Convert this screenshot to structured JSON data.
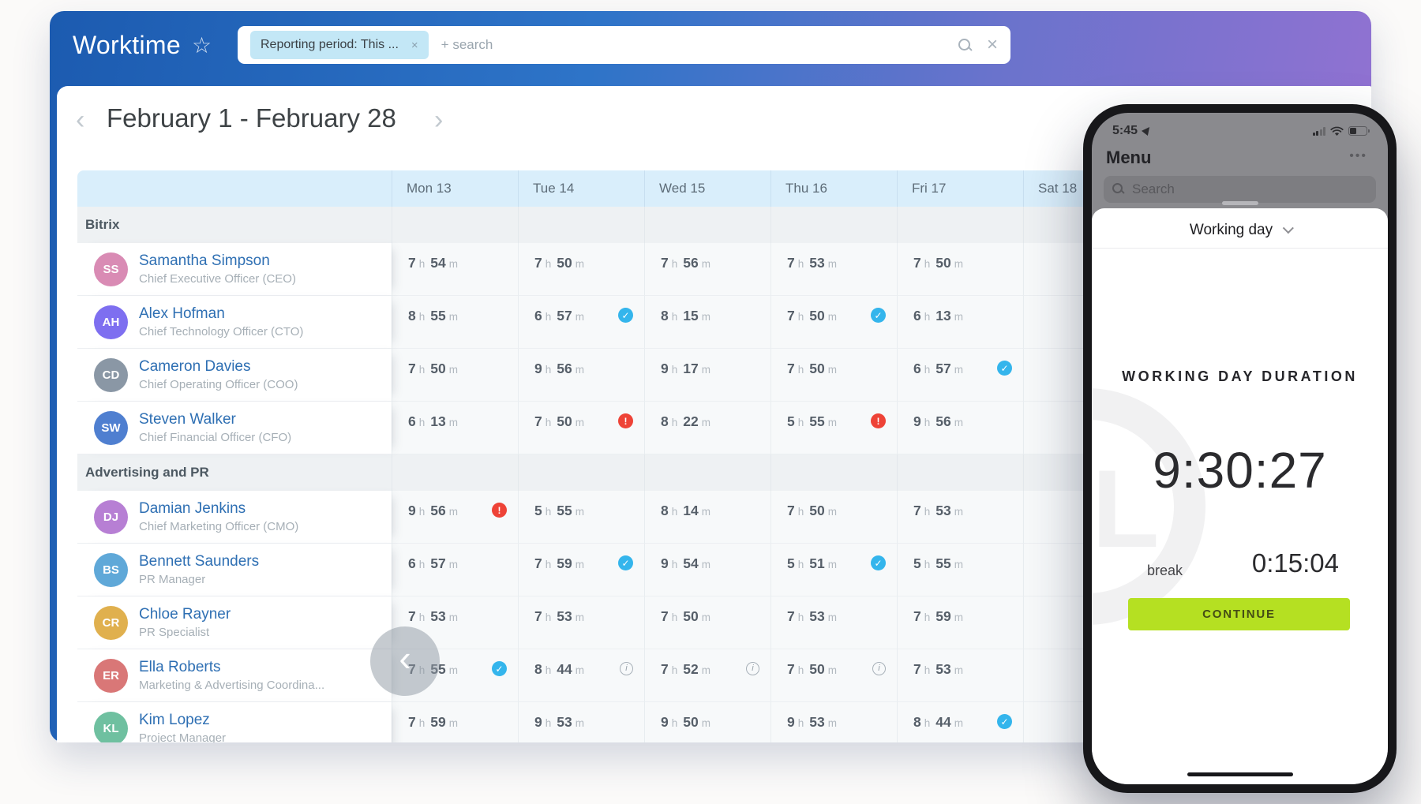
{
  "app": {
    "title": "Worktime"
  },
  "search": {
    "chip": "Reporting period: This ...",
    "placeholder": "+ search"
  },
  "date_nav": {
    "label": "February 1 - February 28"
  },
  "colors": {
    "check_badge": "#34b5ec",
    "alert_badge": "#ee4337",
    "continue_accent": "#b5e022",
    "header_gradient_start": "#1c5bb0",
    "header_gradient_end": "#9b71d3"
  },
  "table": {
    "day_headers": [
      "Mon 13",
      "Tue 14",
      "Wed 15",
      "Thu 16",
      "Fri 17",
      "Sat 18"
    ],
    "unit_hour": "h",
    "unit_min": "m",
    "groups": [
      {
        "name": "Bitrix",
        "members": [
          {
            "name": "Samantha Simpson",
            "title": "Chief Executive Officer (CEO)",
            "days": [
              {
                "h": "7",
                "m": "54"
              },
              {
                "h": "7",
                "m": "50"
              },
              {
                "h": "7",
                "m": "56"
              },
              {
                "h": "7",
                "m": "53"
              },
              {
                "h": "7",
                "m": "50"
              },
              null
            ]
          },
          {
            "name": "Alex Hofman",
            "title": "Chief Technology Officer (CTO)",
            "days": [
              {
                "h": "8",
                "m": "55"
              },
              {
                "h": "6",
                "m": "57",
                "badge": "check"
              },
              {
                "h": "8",
                "m": "15"
              },
              {
                "h": "7",
                "m": "50",
                "badge": "check"
              },
              {
                "h": "6",
                "m": "13"
              },
              null
            ]
          },
          {
            "name": "Cameron Davies",
            "title": "Chief Operating Officer (COO)",
            "days": [
              {
                "h": "7",
                "m": "50"
              },
              {
                "h": "9",
                "m": "56"
              },
              {
                "h": "9",
                "m": "17"
              },
              {
                "h": "7",
                "m": "50"
              },
              {
                "h": "6",
                "m": "57",
                "badge": "check"
              },
              null
            ]
          },
          {
            "name": "Steven Walker",
            "title": "Chief Financial Officer (CFO)",
            "days": [
              {
                "h": "6",
                "m": "13"
              },
              {
                "h": "7",
                "m": "50",
                "badge": "alert"
              },
              {
                "h": "8",
                "m": "22"
              },
              {
                "h": "5",
                "m": "55",
                "badge": "alert"
              },
              {
                "h": "9",
                "m": "56"
              },
              null
            ]
          }
        ]
      },
      {
        "name": "Advertising and PR",
        "members": [
          {
            "name": "Damian Jenkins",
            "title": "Chief Marketing Officer (CMO)",
            "days": [
              {
                "h": "9",
                "m": "56",
                "badge": "alert"
              },
              {
                "h": "5",
                "m": "55"
              },
              {
                "h": "8",
                "m": "14"
              },
              {
                "h": "7",
                "m": "50"
              },
              {
                "h": "7",
                "m": "53"
              },
              null
            ]
          },
          {
            "name": "Bennett Saunders",
            "title": "PR Manager",
            "days": [
              {
                "h": "6",
                "m": "57"
              },
              {
                "h": "7",
                "m": "59",
                "badge": "check"
              },
              {
                "h": "9",
                "m": "54"
              },
              {
                "h": "5",
                "m": "51",
                "badge": "check"
              },
              {
                "h": "5",
                "m": "55"
              },
              null
            ]
          },
          {
            "name": "Chloe Rayner",
            "title": "PR Specialist",
            "days": [
              {
                "h": "7",
                "m": "53"
              },
              {
                "h": "7",
                "m": "53"
              },
              {
                "h": "7",
                "m": "50"
              },
              {
                "h": "7",
                "m": "53"
              },
              {
                "h": "7",
                "m": "59"
              },
              null
            ]
          },
          {
            "name": "Ella Roberts",
            "title": "Marketing & Advertising Coordina...",
            "days": [
              {
                "h": "7",
                "m": "55",
                "badge": "check"
              },
              {
                "h": "8",
                "m": "44",
                "badge": "info"
              },
              {
                "h": "7",
                "m": "52",
                "badge": "info"
              },
              {
                "h": "7",
                "m": "50",
                "badge": "info"
              },
              {
                "h": "7",
                "m": "53"
              },
              null
            ]
          },
          {
            "name": "Kim Lopez",
            "title": "Project Manager",
            "days": [
              {
                "h": "7",
                "m": "59"
              },
              {
                "h": "9",
                "m": "53"
              },
              {
                "h": "9",
                "m": "50"
              },
              {
                "h": "9",
                "m": "53"
              },
              {
                "h": "8",
                "m": "44",
                "badge": "check"
              },
              null
            ]
          }
        ]
      }
    ]
  },
  "phone": {
    "status_time": "5:45",
    "menu_title": "Menu",
    "search_placeholder": "Search",
    "sheet_title": "Working day",
    "duration_label": "WORKING DAY DURATION",
    "duration_value": "9:30:27",
    "break_label": "break",
    "break_value": "0:15:04",
    "continue_label": "CONTINUE"
  }
}
